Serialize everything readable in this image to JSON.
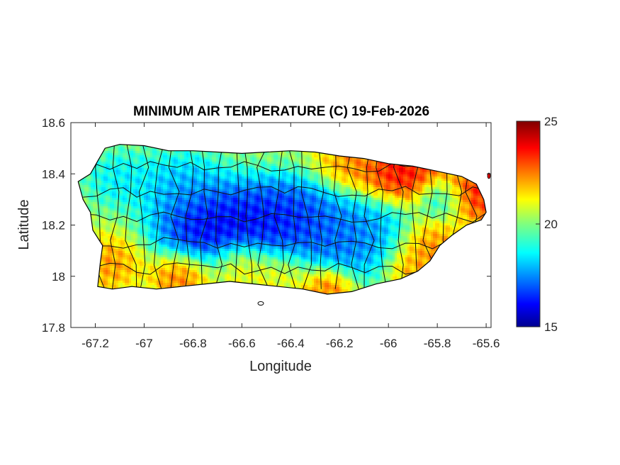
{
  "chart_data": {
    "type": "heatmap",
    "title": "MINIMUM AIR TEMPERATURE (C) 19-Feb-2026",
    "xlabel": "Longitude",
    "ylabel": "Latitude",
    "xlim": [
      -67.3,
      -65.58
    ],
    "ylim": [
      17.8,
      18.6
    ],
    "x_ticks": [
      -67.2,
      -67,
      -66.8,
      -66.6,
      -66.4,
      -66.2,
      -66,
      -65.8,
      -65.6
    ],
    "x_tick_labels": [
      "-67.2",
      "-67",
      "-66.8",
      "-66.6",
      "-66.4",
      "-66.2",
      "-66",
      "-65.8",
      "-65.6"
    ],
    "y_ticks": [
      17.8,
      18,
      18.2,
      18.4,
      18.6
    ],
    "y_tick_labels": [
      "17.8",
      "18",
      "18.2",
      "18.4",
      "18.6"
    ],
    "colorbar": {
      "colormap": "jet",
      "min": 15,
      "max": 25,
      "ticks": [
        15,
        20,
        25
      ],
      "tick_labels": [
        "15",
        "20",
        "25"
      ]
    },
    "grid": false,
    "colors": {
      "cold": "#00008f",
      "mid": "#7fff7f",
      "warm": "#800000",
      "boundary": "#000000"
    },
    "outline": [
      [
        -67.27,
        18.37
      ],
      [
        -67.22,
        18.4
      ],
      [
        -67.19,
        18.45
      ],
      [
        -67.16,
        18.5
      ],
      [
        -67.1,
        18.515
      ],
      [
        -67.0,
        18.51
      ],
      [
        -66.9,
        18.49
      ],
      [
        -66.8,
        18.49
      ],
      [
        -66.7,
        18.485
      ],
      [
        -66.6,
        18.48
      ],
      [
        -66.5,
        18.485
      ],
      [
        -66.4,
        18.49
      ],
      [
        -66.3,
        18.485
      ],
      [
        -66.2,
        18.47
      ],
      [
        -66.1,
        18.46
      ],
      [
        -66.0,
        18.44
      ],
      [
        -65.9,
        18.43
      ],
      [
        -65.8,
        18.41
      ],
      [
        -65.7,
        18.39
      ],
      [
        -65.64,
        18.36
      ],
      [
        -65.61,
        18.3
      ],
      [
        -65.6,
        18.25
      ],
      [
        -65.62,
        18.22
      ],
      [
        -65.68,
        18.2
      ],
      [
        -65.74,
        18.16
      ],
      [
        -65.79,
        18.12
      ],
      [
        -65.83,
        18.06
      ],
      [
        -65.88,
        18.02
      ],
      [
        -65.95,
        17.99
      ],
      [
        -66.05,
        17.97
      ],
      [
        -66.15,
        17.94
      ],
      [
        -66.25,
        17.93
      ],
      [
        -66.35,
        17.95
      ],
      [
        -66.45,
        17.96
      ],
      [
        -66.55,
        17.97
      ],
      [
        -66.65,
        17.98
      ],
      [
        -66.75,
        17.97
      ],
      [
        -66.85,
        17.96
      ],
      [
        -66.95,
        17.95
      ],
      [
        -67.05,
        17.96
      ],
      [
        -67.13,
        17.95
      ],
      [
        -67.19,
        17.96
      ],
      [
        -67.18,
        18.05
      ],
      [
        -67.17,
        18.12
      ],
      [
        -67.21,
        18.18
      ],
      [
        -67.22,
        18.25
      ],
      [
        -67.25,
        18.3
      ]
    ],
    "temperature_centers": [
      {
        "lon": -66.75,
        "lat": 18.2,
        "value": 15.2,
        "spread": 0.12
      },
      {
        "lon": -66.55,
        "lat": 18.2,
        "value": 15.6,
        "spread": 0.12
      },
      {
        "lon": -66.4,
        "lat": 18.23,
        "value": 16.0,
        "spread": 0.11
      },
      {
        "lon": -66.2,
        "lat": 18.15,
        "value": 16.5,
        "spread": 0.12
      },
      {
        "lon": -66.05,
        "lat": 18.18,
        "value": 17.5,
        "spread": 0.1
      },
      {
        "lon": -65.78,
        "lat": 18.3,
        "value": 17.5,
        "spread": 0.06
      },
      {
        "lon": -66.85,
        "lat": 18.35,
        "value": 17.6,
        "spread": 0.1
      },
      {
        "lon": -67.1,
        "lat": 18.38,
        "value": 18.2,
        "spread": 0.08
      },
      {
        "lon": -65.95,
        "lat": 18.4,
        "value": 24.7,
        "spread": 0.1
      },
      {
        "lon": -65.66,
        "lat": 18.32,
        "value": 24.6,
        "spread": 0.08
      },
      {
        "lon": -66.15,
        "lat": 18.45,
        "value": 22.8,
        "spread": 0.08
      },
      {
        "lon": -65.85,
        "lat": 18.12,
        "value": 23.2,
        "spread": 0.08
      },
      {
        "lon": -66.85,
        "lat": 18.0,
        "value": 23.4,
        "spread": 0.07
      },
      {
        "lon": -67.15,
        "lat": 18.05,
        "value": 22.8,
        "spread": 0.08
      },
      {
        "lon": -66.6,
        "lat": 18.05,
        "value": 22.4,
        "spread": 0.07
      },
      {
        "lon": -66.25,
        "lat": 17.96,
        "value": 23.6,
        "spread": 0.06
      },
      {
        "lon": -66.45,
        "lat": 18.0,
        "value": 21.5,
        "spread": 0.08
      },
      {
        "lon": -65.9,
        "lat": 18.03,
        "value": 22.5,
        "spread": 0.06
      }
    ]
  }
}
